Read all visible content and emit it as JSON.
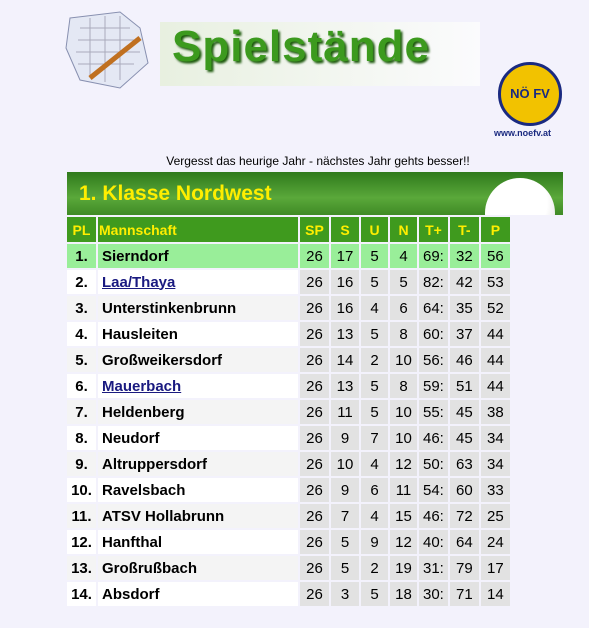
{
  "header": {
    "title": "Spielstände",
    "logo": "NÖ FV",
    "url": "www.noefv.at"
  },
  "message": "Vergesst das heurige Jahr - nächstes Jahr gehts besser!!",
  "table": {
    "title": "1. Klasse Nordwest",
    "columns": [
      "PL",
      "Mannschaft",
      "SP",
      "S",
      "U",
      "N",
      "T+",
      "T-",
      "P"
    ],
    "rows": [
      [
        "1.",
        "Sierndorf",
        26,
        17,
        5,
        4,
        "69:",
        32,
        56
      ],
      [
        "2.",
        "Laa/Thaya",
        26,
        16,
        5,
        5,
        "82:",
        42,
        53
      ],
      [
        "3.",
        "Unterstinkenbrunn",
        26,
        16,
        4,
        6,
        "64:",
        35,
        52
      ],
      [
        "4.",
        "Hausleiten",
        26,
        13,
        5,
        8,
        "60:",
        37,
        44
      ],
      [
        "5.",
        "Großweikersdorf",
        26,
        14,
        2,
        10,
        "56:",
        46,
        44
      ],
      [
        "6.",
        "Mauerbach",
        26,
        13,
        5,
        8,
        "59:",
        51,
        44
      ],
      [
        "7.",
        "Heldenberg",
        26,
        11,
        5,
        10,
        "55:",
        45,
        38
      ],
      [
        "8.",
        "Neudorf",
        26,
        9,
        7,
        10,
        "46:",
        45,
        34
      ],
      [
        "9.",
        "Altruppersdorf",
        26,
        10,
        4,
        12,
        "50:",
        63,
        34
      ],
      [
        "10.",
        "Ravelsbach",
        26,
        9,
        6,
        11,
        "54:",
        60,
        33
      ],
      [
        "11.",
        "ATSV Hollabrunn",
        26,
        7,
        4,
        15,
        "46:",
        72,
        25
      ],
      [
        "12.",
        "Hanfthal",
        26,
        5,
        9,
        12,
        "40:",
        64,
        24
      ],
      [
        "13.",
        "Großrußbach",
        26,
        5,
        2,
        19,
        "31:",
        79,
        17
      ],
      [
        "14.",
        "Absdorf",
        26,
        3,
        5,
        18,
        "30:",
        71,
        14
      ]
    ]
  }
}
